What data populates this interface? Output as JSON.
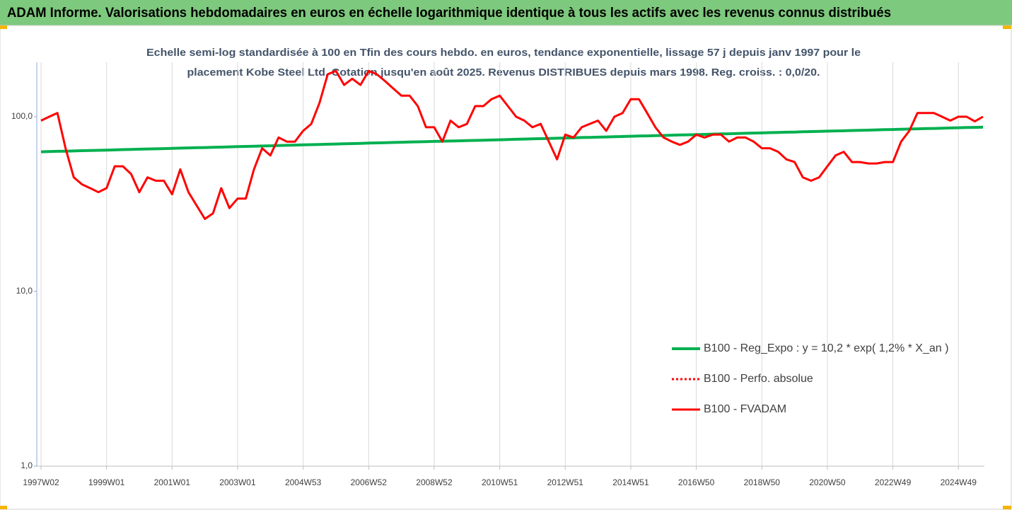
{
  "chart_data": {
    "type": "line",
    "title": "ADAM Informe. Valorisations hebdomadaires en euros en échelle logarithmique identique à tous les actifs avec les revenus connus distribués",
    "subtitle": [
      "Echelle semi-log standardisée à 100 en Tfin des cours hebdo. en euros, tendance exponentielle, lissage 57 j depuis janv 1997 pour le",
      "placement Kobe Steel Ltd. Cotation jusqu'en août 2025. Revenus DISTRIBUES depuis mars 1998. Reg. croiss. : 0,0/20."
    ],
    "categories": [
      "1997W02",
      null,
      null,
      null,
      null,
      null,
      null,
      null,
      "1999W01",
      null,
      null,
      null,
      null,
      null,
      null,
      null,
      "2001W01",
      null,
      null,
      null,
      null,
      null,
      null,
      null,
      "2003W01",
      null,
      null,
      null,
      null,
      null,
      null,
      null,
      "2004W53",
      null,
      null,
      null,
      null,
      null,
      null,
      null,
      "2006W52",
      null,
      null,
      null,
      null,
      null,
      null,
      null,
      "2008W52",
      null,
      null,
      null,
      null,
      null,
      null,
      null,
      "2010W51",
      null,
      null,
      null,
      null,
      null,
      null,
      null,
      "2012W51",
      null,
      null,
      null,
      null,
      null,
      null,
      null,
      "2014W51",
      null,
      null,
      null,
      null,
      null,
      null,
      null,
      "2016W50",
      null,
      null,
      null,
      null,
      null,
      null,
      null,
      "2018W50",
      null,
      null,
      null,
      null,
      null,
      null,
      null,
      "2020W50",
      null,
      null,
      null,
      null,
      null,
      null,
      null,
      "2022W49",
      null,
      null,
      null,
      null,
      null,
      null,
      null,
      "2024W49",
      null,
      null,
      null
    ],
    "series": [
      {
        "name": "B100 - Reg_Expo : y = 10,2 * exp( 1,2% *  X_an )",
        "color": "#00b050",
        "width": 4,
        "values": [
          63.0,
          63.2,
          63.4,
          63.5,
          63.7,
          63.9,
          64.1,
          64.2,
          64.4,
          64.6,
          64.8,
          65.0,
          65.2,
          65.4,
          65.5,
          65.7,
          65.9,
          66.1,
          66.3,
          66.5,
          66.6,
          66.8,
          67.0,
          67.2,
          67.4,
          67.6,
          67.8,
          68.0,
          68.2,
          68.4,
          68.6,
          68.8,
          69.0,
          69.2,
          69.4,
          69.6,
          69.8,
          70.0,
          70.2,
          70.4,
          70.6,
          70.8,
          71.0,
          71.2,
          71.4,
          71.6,
          71.8,
          72.0,
          72.2,
          72.4,
          72.6,
          72.8,
          73.0,
          73.2,
          73.4,
          73.6,
          73.8,
          74.0,
          74.3,
          74.5,
          74.7,
          74.9,
          75.1,
          75.3,
          75.5,
          75.7,
          76.0,
          76.2,
          76.4,
          76.6,
          76.8,
          77.0,
          77.3,
          77.5,
          77.7,
          77.9,
          78.1,
          78.4,
          78.6,
          78.8,
          79.0,
          79.2,
          79.5,
          79.7,
          79.9,
          80.1,
          80.4,
          80.6,
          80.8,
          81.1,
          81.3,
          81.5,
          81.7,
          82.0,
          82.2,
          82.4,
          82.7,
          82.9,
          83.1,
          83.4,
          83.6,
          83.8,
          84.1,
          84.3,
          84.5,
          84.8,
          85.0,
          85.3,
          85.5,
          85.7,
          86.0,
          86.2,
          86.5,
          86.7,
          86.9,
          87.2
        ]
      },
      {
        "name": "B100 - Perfo. absolue",
        "color": "#ff0000",
        "width": 3,
        "dash": "dotted"
      },
      {
        "name": "B100 - FVADAM",
        "color": "#ff0000",
        "width": 3,
        "values": [
          95,
          100,
          105,
          66,
          45,
          41,
          39,
          37,
          39,
          52,
          52,
          47,
          37,
          45,
          43,
          43,
          36,
          50,
          37,
          31,
          26,
          28,
          39,
          30,
          34,
          34,
          50,
          66,
          60,
          76,
          72,
          72,
          83,
          91,
          120,
          175,
          183,
          152,
          165,
          152,
          183,
          175,
          160,
          145,
          132,
          132,
          115,
          87,
          87,
          72,
          95,
          87,
          91,
          115,
          115,
          126,
          132,
          115,
          100,
          95,
          87,
          91,
          72,
          57,
          79,
          76,
          87,
          91,
          95,
          83,
          100,
          105,
          126,
          126,
          105,
          87,
          76,
          72,
          69,
          72,
          79,
          76,
          79,
          79,
          72,
          76,
          76,
          72,
          66,
          66,
          63,
          57,
          55,
          45,
          43,
          45,
          52,
          60,
          63,
          55,
          55,
          54,
          54,
          55,
          55,
          72,
          83,
          105,
          105,
          105,
          100,
          95,
          100,
          100,
          94,
          100
        ]
      }
    ],
    "ylog": true,
    "ylim": [
      1,
      205
    ],
    "yticks": [
      {
        "value": 1,
        "label": "1,0"
      },
      {
        "value": 10,
        "label": "10,0"
      },
      {
        "value": 100,
        "label": "100,0"
      }
    ],
    "xgrid": true,
    "legend": "lower right"
  }
}
